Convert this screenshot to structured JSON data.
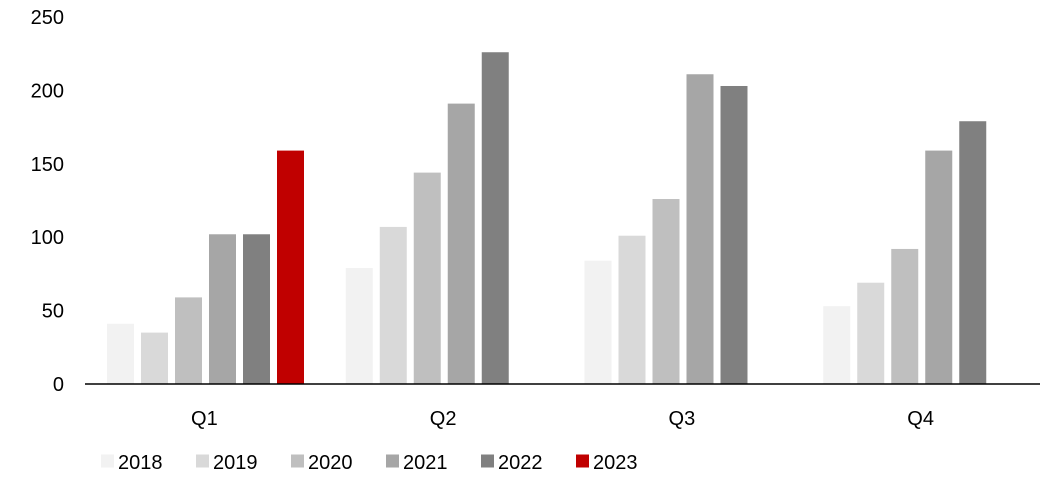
{
  "chart_data": {
    "type": "bar",
    "title": "",
    "xlabel": "",
    "ylabel": "",
    "categories": [
      "Q1",
      "Q2",
      "Q3",
      "Q4"
    ],
    "y_ticks": [
      0,
      50,
      100,
      150,
      200,
      250
    ],
    "ylim": [
      0,
      250
    ],
    "grid": false,
    "legend_position": "bottom-left",
    "series": [
      {
        "name": "2018",
        "color": "#f2f2f2",
        "values": [
          41,
          79,
          84,
          53
        ]
      },
      {
        "name": "2019",
        "color": "#d9d9d9",
        "values": [
          35,
          107,
          101,
          69
        ]
      },
      {
        "name": "2020",
        "color": "#bfbfbf",
        "values": [
          59,
          144,
          126,
          92
        ]
      },
      {
        "name": "2021",
        "color": "#a6a6a6",
        "values": [
          102,
          191,
          211,
          159
        ]
      },
      {
        "name": "2022",
        "color": "#808080",
        "values": [
          102,
          226,
          203,
          179
        ]
      },
      {
        "name": "2023",
        "color": "#c00000",
        "values": [
          159,
          null,
          null,
          null
        ]
      }
    ]
  }
}
